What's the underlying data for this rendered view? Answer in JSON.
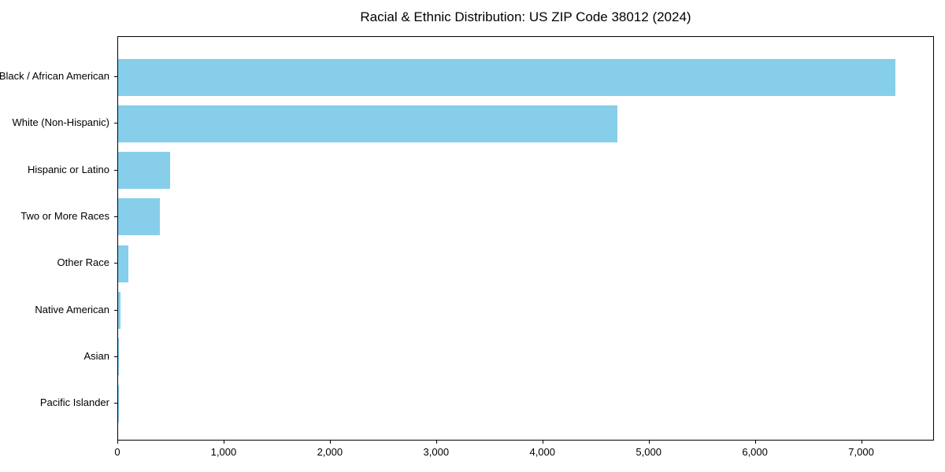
{
  "title": "Racial & Ethnic Distribution: US ZIP Code 38012 (2024)",
  "chart_data": {
    "type": "bar",
    "orientation": "horizontal",
    "title": "Racial & Ethnic Distribution: US ZIP Code 38012 (2024)",
    "categories": [
      "Black / African American",
      "White (Non-Hispanic)",
      "Hispanic or Latino",
      "Two or More Races",
      "Other Race",
      "Native American",
      "Asian",
      "Pacific Islander"
    ],
    "values": [
      7316,
      4702,
      489,
      391,
      99,
      25,
      8,
      2
    ],
    "bar_color": "#87CEEB",
    "xlabel": "",
    "ylabel": "",
    "xlim": [
      0,
      7685
    ],
    "xticks": [
      0,
      1000,
      2000,
      3000,
      4000,
      5000,
      6000,
      7000
    ],
    "xtick_labels": [
      "0",
      "1,000",
      "2,000",
      "3,000",
      "4,000",
      "5,000",
      "6,000",
      "7,000"
    ],
    "grid": false,
    "legend": null,
    "frame": "full-box"
  }
}
